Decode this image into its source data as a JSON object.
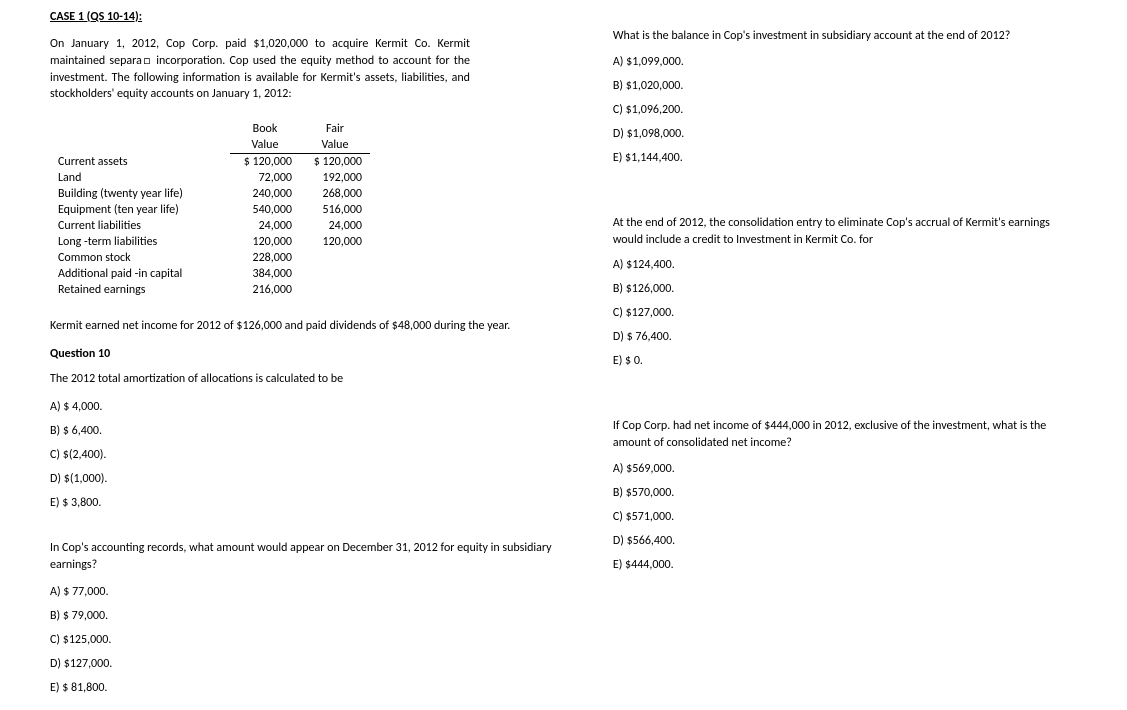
{
  "case_title": "CASE 1 (QS 10-14):",
  "intro": "On January 1, 2012, Cop Corp. paid $1,020,000 to acquire Kermit Co. Kermit maintained separa□ incorporation. Cop used the equity method to account for the investment. The following information is available for Kermit's assets, liabilities, and stockholders' equity accounts on January 1, 2012:",
  "table": {
    "headers": {
      "col1": "Book",
      "col1b": "Value",
      "col2": "Fair",
      "col2b": "Value"
    },
    "rows": [
      {
        "label": "Current assets",
        "book": "$ 120,000",
        "fair": "$ 120,000"
      },
      {
        "label": "Land",
        "book": "72,000",
        "fair": "192,000"
      },
      {
        "label": "Building (twenty year life)",
        "book": "240,000",
        "fair": "268,000"
      },
      {
        "label": "Equipment (ten year life)",
        "book": "540,000",
        "fair": "516,000"
      },
      {
        "label": "Current liabilities",
        "book": "24,000",
        "fair": "24,000"
      },
      {
        "label": "Long -term liabilities",
        "book": "120,000",
        "fair": "120,000"
      },
      {
        "label": "Common stock",
        "book": "228,000",
        "fair": ""
      },
      {
        "label": "Additional paid -in capital",
        "book": "384,000",
        "fair": ""
      },
      {
        "label": "Retained earnings",
        "book": "216,000",
        "fair": ""
      }
    ]
  },
  "earnings_text": "Kermit earned net income for 2012 of $126,000 and paid dividends of $48,000 during the year.",
  "q10": {
    "label": "Question 10",
    "text": "The 2012 total amortization of allocations is calculated to be",
    "choices": {
      "a": "A) $  4,000.",
      "b": "B) $  6,400.",
      "c": "C) $(2,400).",
      "d": "D) $(1,000).",
      "e": "E) $  3,800."
    }
  },
  "q11": {
    "text": "In Cop's accounting records, what amount would appear on December 31, 2012 for equity in subsidiary earnings?",
    "choices": {
      "a": "A) $  77,000.",
      "b": "B) $  79,000.",
      "c": "C) $125,000.",
      "d": "D) $127,000.",
      "e": "E) $  81,800."
    }
  },
  "q12": {
    "text": "What is the balance in Cop's investment in subsidiary account at the end of 2012?",
    "choices": {
      "a": "A) $1,099,000.",
      "b": "B) $1,020,000.",
      "c": "C) $1,096,200.",
      "d": "D) $1,098,000.",
      "e": "E) $1,144,400."
    }
  },
  "q13": {
    "text": "At the end of 2012, the consolidation entry to eliminate Cop's accrual of Kermit's earnings would include a credit to Investment in Kermit Co. for",
    "choices": {
      "a": "A) $124,400.",
      "b": "B) $126,000.",
      "c": "C) $127,000.",
      "d": "D) $ 76,400.",
      "e": "E) $ 0."
    }
  },
  "q14": {
    "text": "If Cop Corp. had net income of $444,000 in 2012, exclusive of the investment, what is the amount of consolidated net income?",
    "choices": {
      "a": "A) $569,000.",
      "b": "B) $570,000.",
      "c": "C) $571,000.",
      "d": "D) $566,400.",
      "e": "E) $444,000."
    }
  }
}
